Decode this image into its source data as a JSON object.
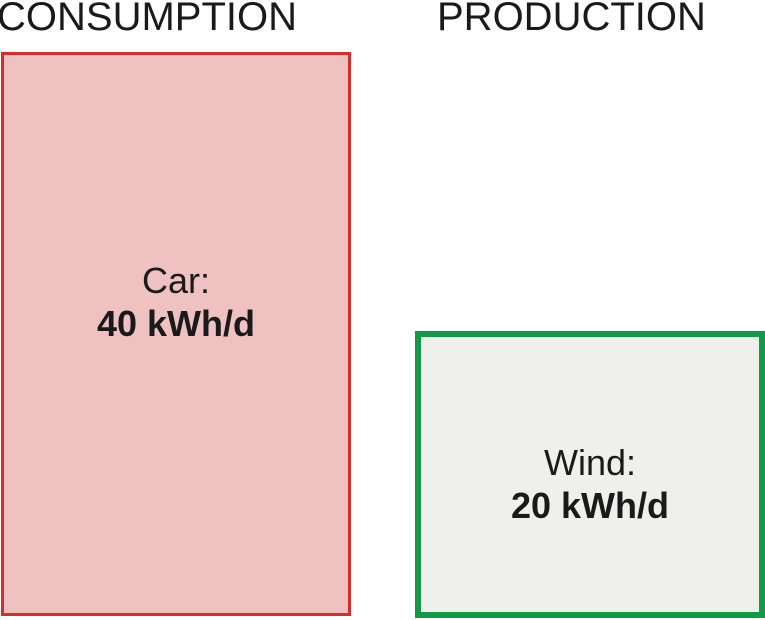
{
  "headings": {
    "consumption": "CONSUMPTION",
    "production": "PRODUCTION"
  },
  "blocks": {
    "consumption": {
      "label": "Car:",
      "value_text": "40 kWh/d",
      "value": 40,
      "unit": "kWh/d",
      "border_color": "#d62d2d",
      "fill_color": "#efc1c1"
    },
    "production": {
      "label": "Wind:",
      "value_text": "20 kWh/d",
      "value": 20,
      "unit": "kWh/d",
      "border_color": "#129a47",
      "fill_color": "#efefeb"
    }
  }
}
